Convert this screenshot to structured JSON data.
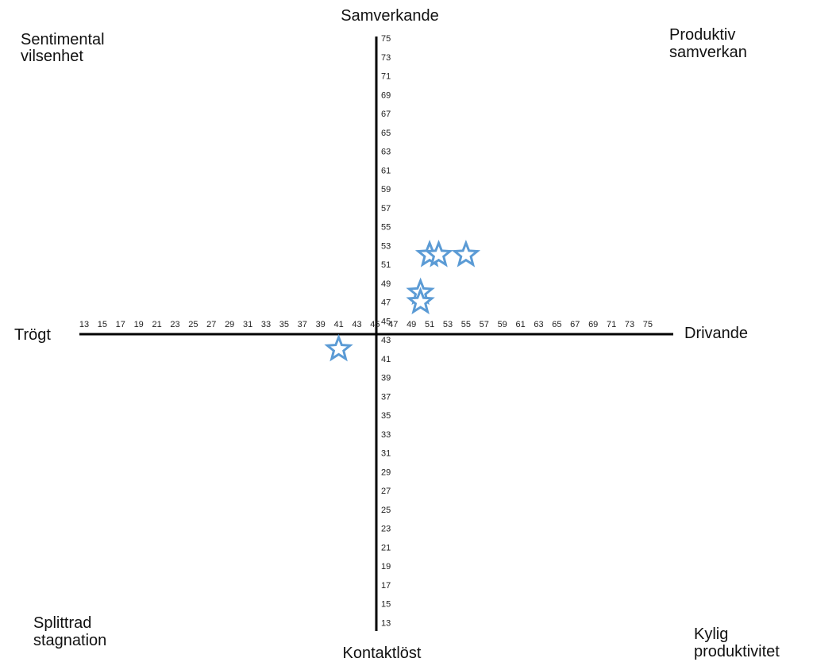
{
  "chart_data": {
    "type": "scatter",
    "title": "",
    "x_axis": {
      "min": 13,
      "max": 75,
      "crossing": 45,
      "left_label": "Trögt",
      "right_label": "Drivande",
      "ticks": [
        13,
        15,
        17,
        19,
        21,
        23,
        25,
        27,
        29,
        31,
        33,
        35,
        37,
        39,
        41,
        43,
        45,
        47,
        49,
        51,
        53,
        55,
        57,
        59,
        61,
        63,
        65,
        67,
        69,
        71,
        73,
        75
      ]
    },
    "y_axis": {
      "min": 13,
      "max": 75,
      "crossing": 45,
      "top_label": "Samverkande",
      "bottom_label": "Kontaktlöst",
      "ticks": [
        13,
        15,
        17,
        19,
        21,
        23,
        25,
        27,
        29,
        31,
        33,
        35,
        37,
        39,
        41,
        43,
        45,
        47,
        49,
        51,
        53,
        55,
        57,
        59,
        61,
        63,
        65,
        67,
        69,
        71,
        73,
        75
      ]
    },
    "quadrants": {
      "top_left": [
        "Sentimental",
        "vilsenhet"
      ],
      "top_right": [
        "Produktiv",
        "samverkan"
      ],
      "bottom_left": [
        "Splittrad",
        "stagnation"
      ],
      "bottom_right": [
        "Kylig",
        "produktivitet"
      ]
    },
    "marker": {
      "shape": "star",
      "color": "#5b9bd5"
    },
    "points": [
      {
        "x": 51,
        "y": 52
      },
      {
        "x": 52,
        "y": 52
      },
      {
        "x": 55,
        "y": 52
      },
      {
        "x": 50,
        "y": 48
      },
      {
        "x": 50,
        "y": 47
      },
      {
        "x": 41,
        "y": 42
      }
    ]
  }
}
